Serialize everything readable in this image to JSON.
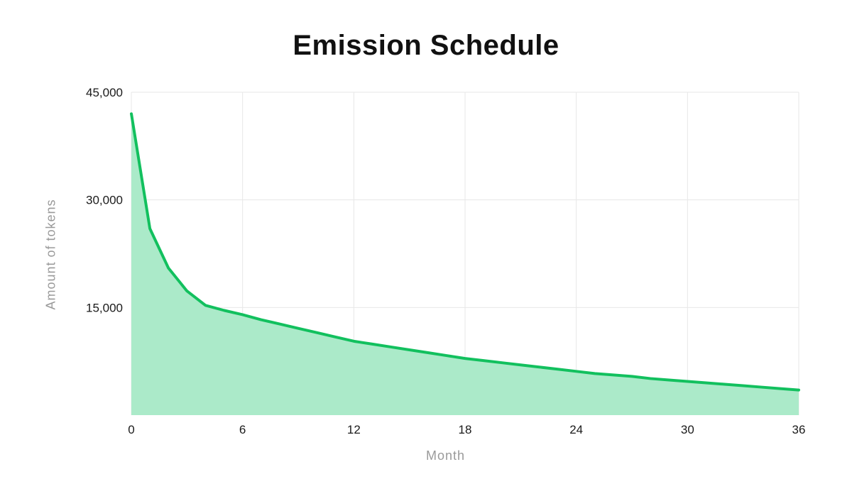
{
  "chart_data": {
    "type": "area",
    "title": "Emission Schedule",
    "xlabel": "Month",
    "ylabel": "Amount of tokens",
    "x": [
      0,
      1,
      2,
      3,
      4,
      5,
      6,
      7,
      8,
      9,
      10,
      11,
      12,
      13,
      14,
      15,
      16,
      17,
      18,
      19,
      20,
      21,
      22,
      23,
      24,
      25,
      26,
      27,
      28,
      29,
      30,
      31,
      32,
      33,
      34,
      35,
      36
    ],
    "values": [
      42000,
      26000,
      20500,
      17300,
      15300,
      14600,
      14000,
      13300,
      12700,
      12100,
      11500,
      10900,
      10300,
      9900,
      9500,
      9100,
      8700,
      8300,
      7900,
      7600,
      7300,
      7000,
      6700,
      6400,
      6100,
      5800,
      5600,
      5400,
      5100,
      4900,
      4700,
      4500,
      4300,
      4100,
      3900,
      3700,
      3500
    ],
    "x_ticks": [
      0,
      6,
      12,
      18,
      24,
      30,
      36
    ],
    "x_tick_labels": [
      "0",
      "6",
      "12",
      "18",
      "24",
      "30",
      "36"
    ],
    "y_ticks": [
      15000,
      30000,
      45000
    ],
    "y_tick_labels": [
      "15,000",
      "30,000",
      "45,000"
    ],
    "xlim": [
      0,
      36
    ],
    "ylim": [
      0,
      45000
    ],
    "grid": true,
    "legend_position": "none",
    "colors": {
      "line": "#12c05e",
      "fill": "#abeac9",
      "grid": "#e7e7e7",
      "tick_text": "#1a1a1a",
      "axis_label": "#9a9a9a",
      "title": "#111111",
      "background": "#ffffff"
    }
  }
}
